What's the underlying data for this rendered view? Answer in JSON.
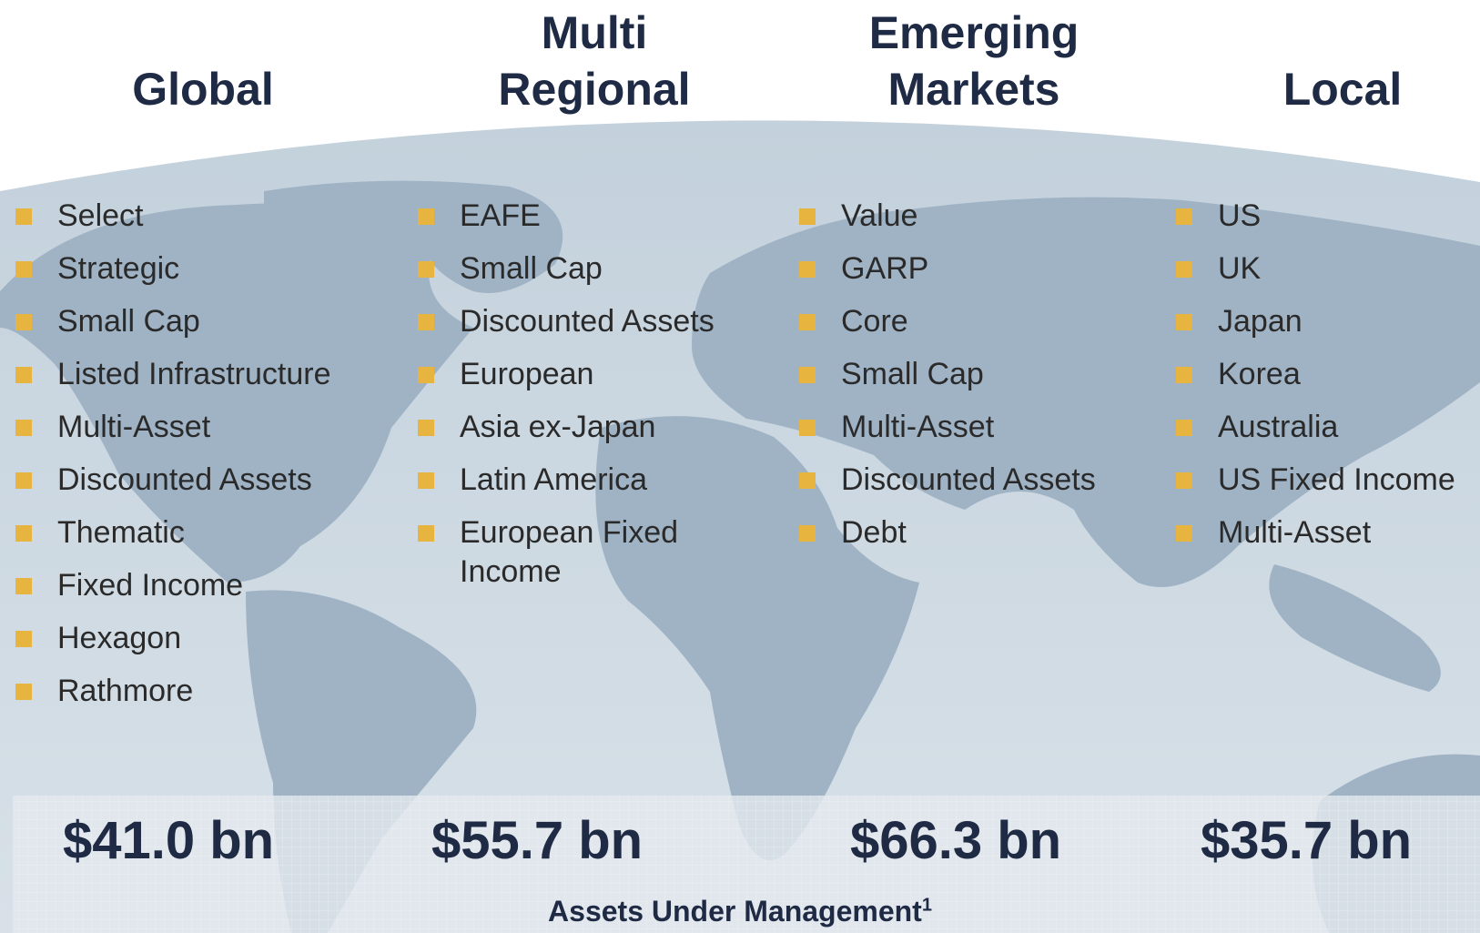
{
  "columns": [
    {
      "heading": [
        "Global"
      ],
      "items": [
        "Select",
        "Strategic",
        "Small Cap",
        "Listed Infrastructure",
        "Multi-Asset",
        "Discounted Assets",
        "Thematic",
        "Fixed Income",
        "Hexagon",
        "Rathmore"
      ],
      "aum": "$41.0 bn"
    },
    {
      "heading": [
        "Multi",
        "Regional"
      ],
      "items": [
        "EAFE",
        "Small Cap",
        "Discounted Assets",
        "European",
        "Asia ex-Japan",
        "Latin America",
        "European Fixed Income"
      ],
      "aum": "$55.7 bn"
    },
    {
      "heading": [
        "Emerging",
        "Markets"
      ],
      "items": [
        "Value",
        "GARP",
        "Core",
        "Small Cap",
        "Multi-Asset",
        "Discounted Assets",
        "Debt"
      ],
      "aum": "$66.3 bn"
    },
    {
      "heading": [
        "Local"
      ],
      "items": [
        "US",
        "UK",
        "Japan",
        "Korea",
        "Australia",
        "US Fixed Income",
        "Multi-Asset"
      ],
      "aum": "$35.7 bn"
    }
  ],
  "aum_label": "Assets Under Management",
  "footnote": "1"
}
